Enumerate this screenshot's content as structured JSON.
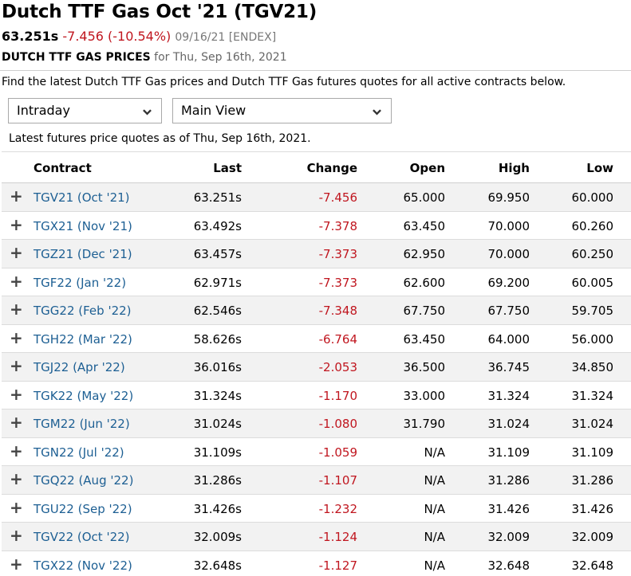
{
  "header": {
    "title": "Dutch TTF Gas Oct '21 (TGV21)",
    "last": "63.251s",
    "change": "-7.456 (-10.54%)",
    "meta": "09/16/21 [ENDEX]",
    "caps_label": "DUTCH TTF GAS PRICES",
    "date_label": "for Thu, Sep 16th, 2021"
  },
  "intro": "Find the latest Dutch TTF Gas prices and Dutch TTF Gas futures quotes for all active contracts below.",
  "controls": {
    "period_select": "Intraday",
    "view_select": "Main View"
  },
  "asof": "Latest futures price quotes as of Thu, Sep 16th, 2021.",
  "colors": {
    "link": "#1d5f93",
    "negative": "#c0161f"
  },
  "table": {
    "headers": [
      "Contract",
      "Last",
      "Change",
      "Open",
      "High",
      "Low"
    ],
    "expand_glyph": "+",
    "rows": [
      {
        "contract": "TGV21 (Oct '21)",
        "last": "63.251s",
        "change": "-7.456",
        "open": "65.000",
        "high": "69.950",
        "low": "60.000"
      },
      {
        "contract": "TGX21 (Nov '21)",
        "last": "63.492s",
        "change": "-7.378",
        "open": "63.450",
        "high": "70.000",
        "low": "60.260"
      },
      {
        "contract": "TGZ21 (Dec '21)",
        "last": "63.457s",
        "change": "-7.373",
        "open": "62.950",
        "high": "70.000",
        "low": "60.250"
      },
      {
        "contract": "TGF22 (Jan '22)",
        "last": "62.971s",
        "change": "-7.373",
        "open": "62.600",
        "high": "69.200",
        "low": "60.005"
      },
      {
        "contract": "TGG22 (Feb '22)",
        "last": "62.546s",
        "change": "-7.348",
        "open": "67.750",
        "high": "67.750",
        "low": "59.705"
      },
      {
        "contract": "TGH22 (Mar '22)",
        "last": "58.626s",
        "change": "-6.764",
        "open": "63.450",
        "high": "64.000",
        "low": "56.000"
      },
      {
        "contract": "TGJ22 (Apr '22)",
        "last": "36.016s",
        "change": "-2.053",
        "open": "36.500",
        "high": "36.745",
        "low": "34.850"
      },
      {
        "contract": "TGK22 (May '22)",
        "last": "31.324s",
        "change": "-1.170",
        "open": "33.000",
        "high": "31.324",
        "low": "31.324"
      },
      {
        "contract": "TGM22 (Jun '22)",
        "last": "31.024s",
        "change": "-1.080",
        "open": "31.790",
        "high": "31.024",
        "low": "31.024"
      },
      {
        "contract": "TGN22 (Jul '22)",
        "last": "31.109s",
        "change": "-1.059",
        "open": "N/A",
        "high": "31.109",
        "low": "31.109"
      },
      {
        "contract": "TGQ22 (Aug '22)",
        "last": "31.286s",
        "change": "-1.107",
        "open": "N/A",
        "high": "31.286",
        "low": "31.286"
      },
      {
        "contract": "TGU22 (Sep '22)",
        "last": "31.426s",
        "change": "-1.232",
        "open": "N/A",
        "high": "31.426",
        "low": "31.426"
      },
      {
        "contract": "TGV22 (Oct '22)",
        "last": "32.009s",
        "change": "-1.124",
        "open": "N/A",
        "high": "32.009",
        "low": "32.009"
      },
      {
        "contract": "TGX22 (Nov '22)",
        "last": "32.648s",
        "change": "-1.127",
        "open": "N/A",
        "high": "32.648",
        "low": "32.648"
      }
    ]
  }
}
